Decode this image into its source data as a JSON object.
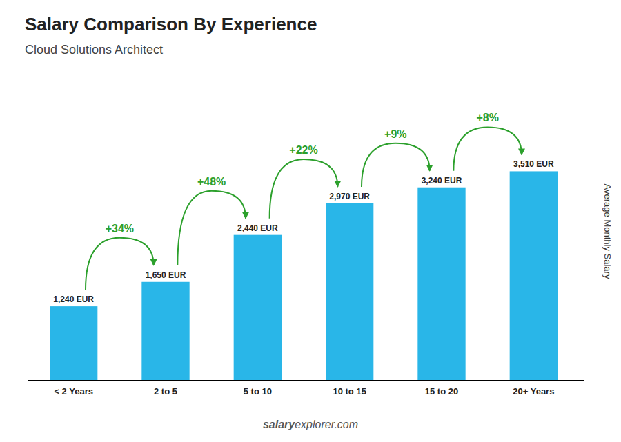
{
  "chart_data": {
    "type": "bar",
    "title": "Salary Comparison By Experience",
    "subtitle": "Cloud Solutions Architect",
    "categories": [
      "< 2 Years",
      "2 to 5",
      "5 to 10",
      "10 to 15",
      "15 to 20",
      "20+ Years"
    ],
    "values": [
      1240,
      1650,
      2440,
      2970,
      3240,
      3510
    ],
    "value_labels": [
      "1,240 EUR",
      "1,650 EUR",
      "2,440 EUR",
      "2,970 EUR",
      "3,240 EUR",
      "3,510 EUR"
    ],
    "data_labels": true,
    "annotations": [
      "+34%",
      "+48%",
      "+22%",
      "+9%",
      "+8%"
    ],
    "ylabel": "Average Monthly Salary",
    "footer": [
      "salary",
      "explorer.com"
    ],
    "color": "#29b6e8",
    "ylim": [
      0,
      5000
    ],
    "tick_labels": "x",
    "grid": false
  }
}
